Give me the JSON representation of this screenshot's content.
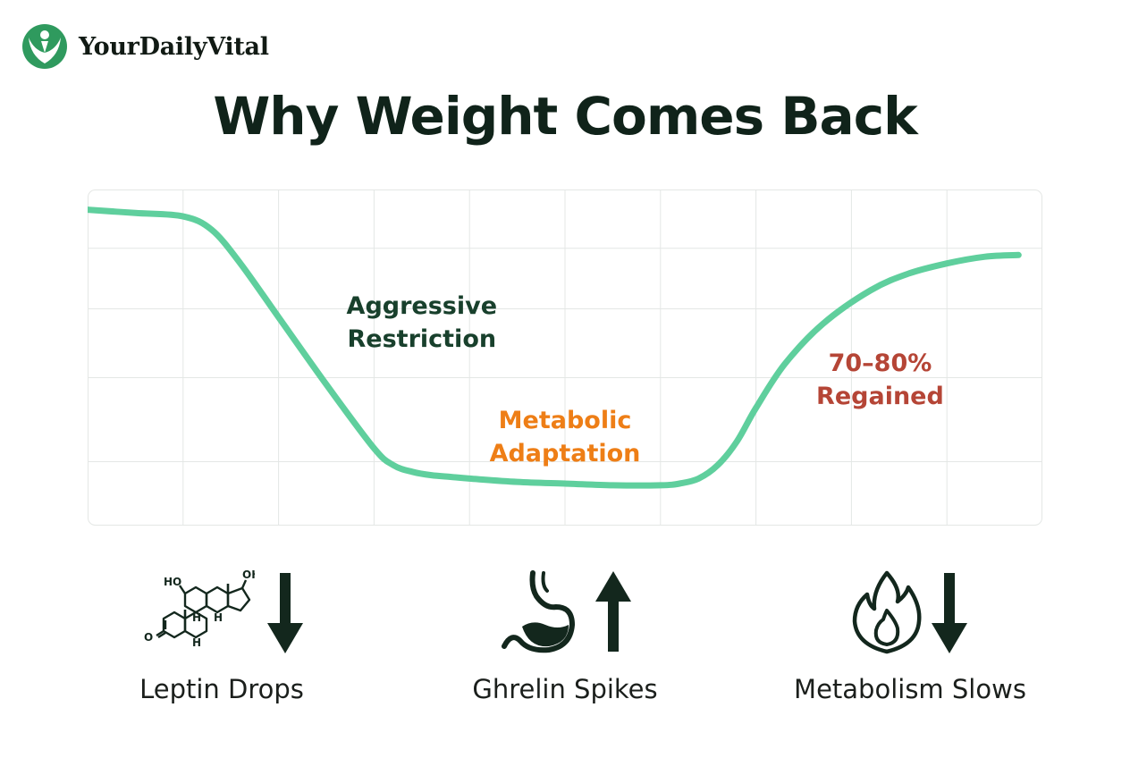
{
  "brand": {
    "name": "YourDailyVital",
    "logo_icon": "person-leaf-logo-icon"
  },
  "title": "Why Weight Comes Back",
  "chart_data": {
    "type": "line",
    "title": "Why Weight Comes Back",
    "xlabel": "",
    "ylabel": "",
    "grid": true,
    "legend": "none",
    "xlim": [
      0,
      10
    ],
    "ylim": [
      0,
      10
    ],
    "series": [
      {
        "color": "#5fcf9d",
        "x": [
          0,
          0.5,
          1.0,
          1.3,
          1.6,
          2.0,
          2.5,
          3.0,
          3.2,
          3.4,
          3.6,
          3.8,
          4.0,
          4.5,
          5.0,
          5.5,
          6.0,
          6.2,
          6.4,
          6.6,
          6.8,
          7.0,
          7.3,
          7.7,
          8.2,
          8.6,
          9.0,
          9.4,
          9.75
        ],
        "y": [
          9.4,
          9.3,
          9.2,
          8.8,
          7.8,
          6.2,
          4.2,
          2.3,
          1.8,
          1.6,
          1.5,
          1.45,
          1.4,
          1.3,
          1.25,
          1.2,
          1.2,
          1.25,
          1.4,
          1.8,
          2.5,
          3.5,
          4.8,
          6.0,
          7.0,
          7.5,
          7.8,
          8.0,
          8.05
        ]
      }
    ],
    "annotations": [
      {
        "lines": [
          "Aggressive",
          "Restriction"
        ],
        "x": 3.5,
        "y": 6.3,
        "color": "#18402c"
      },
      {
        "lines": [
          "Metabolic",
          "Adaptation"
        ],
        "x": 5.0,
        "y": 2.9,
        "color": "#ee7e16"
      },
      {
        "lines": [
          "70–80%",
          "Regained"
        ],
        "x": 8.3,
        "y": 4.6,
        "color": "#b54536"
      }
    ]
  },
  "indicators": [
    {
      "label": "Leptin Drops",
      "icon": "steroid-molecule-icon",
      "arrow_icon": "arrow-down-icon",
      "direction": "down"
    },
    {
      "label": "Ghrelin Spikes",
      "icon": "stomach-icon",
      "arrow_icon": "arrow-up-icon",
      "direction": "up"
    },
    {
      "label": "Metabolism Slows",
      "icon": "flame-icon",
      "arrow_icon": "arrow-down-icon",
      "direction": "down"
    }
  ],
  "molecule": {
    "ho": "HO",
    "oh": "OH",
    "o": "O",
    "h": "H"
  },
  "colors": {
    "line": "#5fcf9d",
    "grid": "#e4e7e5",
    "dark": "#13271d",
    "brand_green": "#2f9a5e"
  }
}
